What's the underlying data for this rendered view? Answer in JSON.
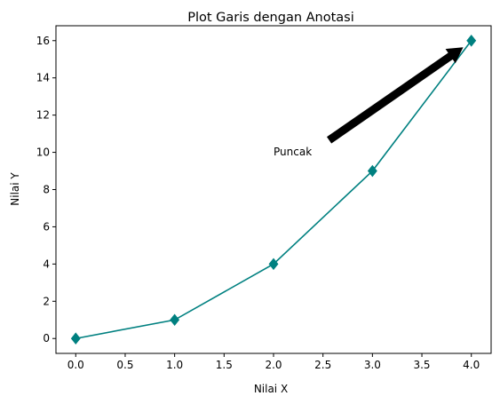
{
  "chart_data": {
    "type": "line",
    "title": "Plot Garis dengan Anotasi",
    "xlabel": "Nilai X",
    "ylabel": "Nilai Y",
    "x": [
      0,
      1,
      2,
      3,
      4
    ],
    "series": [
      {
        "values": [
          0,
          1,
          4,
          9,
          16
        ],
        "color": "#008080",
        "marker": "diamond"
      }
    ],
    "xlim": [
      -0.2,
      4.2
    ],
    "ylim": [
      -0.8,
      16.8
    ],
    "xticks": [
      "0.0",
      "0.5",
      "1.0",
      "1.5",
      "2.0",
      "2.5",
      "3.0",
      "3.5",
      "4.0"
    ],
    "yticks": [
      "0",
      "2",
      "4",
      "6",
      "8",
      "10",
      "12",
      "14",
      "16"
    ],
    "grid": false,
    "annotation": {
      "text": "Puncak",
      "text_at": [
        2,
        10
      ],
      "points_to": [
        4,
        16
      ],
      "arrow_color": "#000000"
    }
  }
}
